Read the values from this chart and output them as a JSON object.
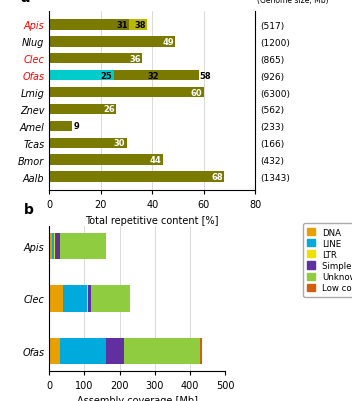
{
  "panel_a": {
    "species": [
      "Apis",
      "Nlug",
      "Clec",
      "Ofas",
      "Lmig",
      "Znev",
      "Amel",
      "Tcas",
      "Bmor",
      "Aalb"
    ],
    "red_species": [
      "Apis",
      "Clec",
      "Ofas"
    ],
    "genome_sizes": [
      "(517)",
      "(1200)",
      "(865)",
      "(926)",
      "(6300)",
      "(562)",
      "(233)",
      "(166)",
      "(432)",
      "(1343)"
    ],
    "bar1_values": [
      31,
      49,
      36,
      25,
      60,
      26,
      9,
      30,
      44,
      68
    ],
    "bar2_end_values": [
      38,
      null,
      null,
      58,
      null,
      null,
      null,
      null,
      null,
      null
    ],
    "bar1_color": "#7a7a00",
    "bar2_color_apis": "#b8b800",
    "bar2_color_ofas": "#00cccc",
    "xlim": [
      0,
      80
    ],
    "xlabel": "Total repetitive content [%]",
    "title": "a"
  },
  "panel_b": {
    "species": [
      "Apis",
      "Clec",
      "Ofas"
    ],
    "data": {
      "DNA": [
        8,
        38,
        30
      ],
      "LINE": [
        5,
        70,
        130
      ],
      "LTR": [
        2,
        2,
        2
      ],
      "Simple repeat": [
        15,
        8,
        50
      ],
      "Unknown": [
        130,
        110,
        215
      ],
      "Low complexity": [
        2,
        2,
        8
      ]
    },
    "colors": {
      "DNA": "#e8a000",
      "LINE": "#00aadd",
      "LTR": "#f0e000",
      "Simple repeat": "#6030a0",
      "Unknown": "#90cc40",
      "Low complexity": "#d06010"
    },
    "xlim": [
      0,
      500
    ],
    "xlabel": "Assembly coverage [Mb]",
    "title": "b"
  }
}
